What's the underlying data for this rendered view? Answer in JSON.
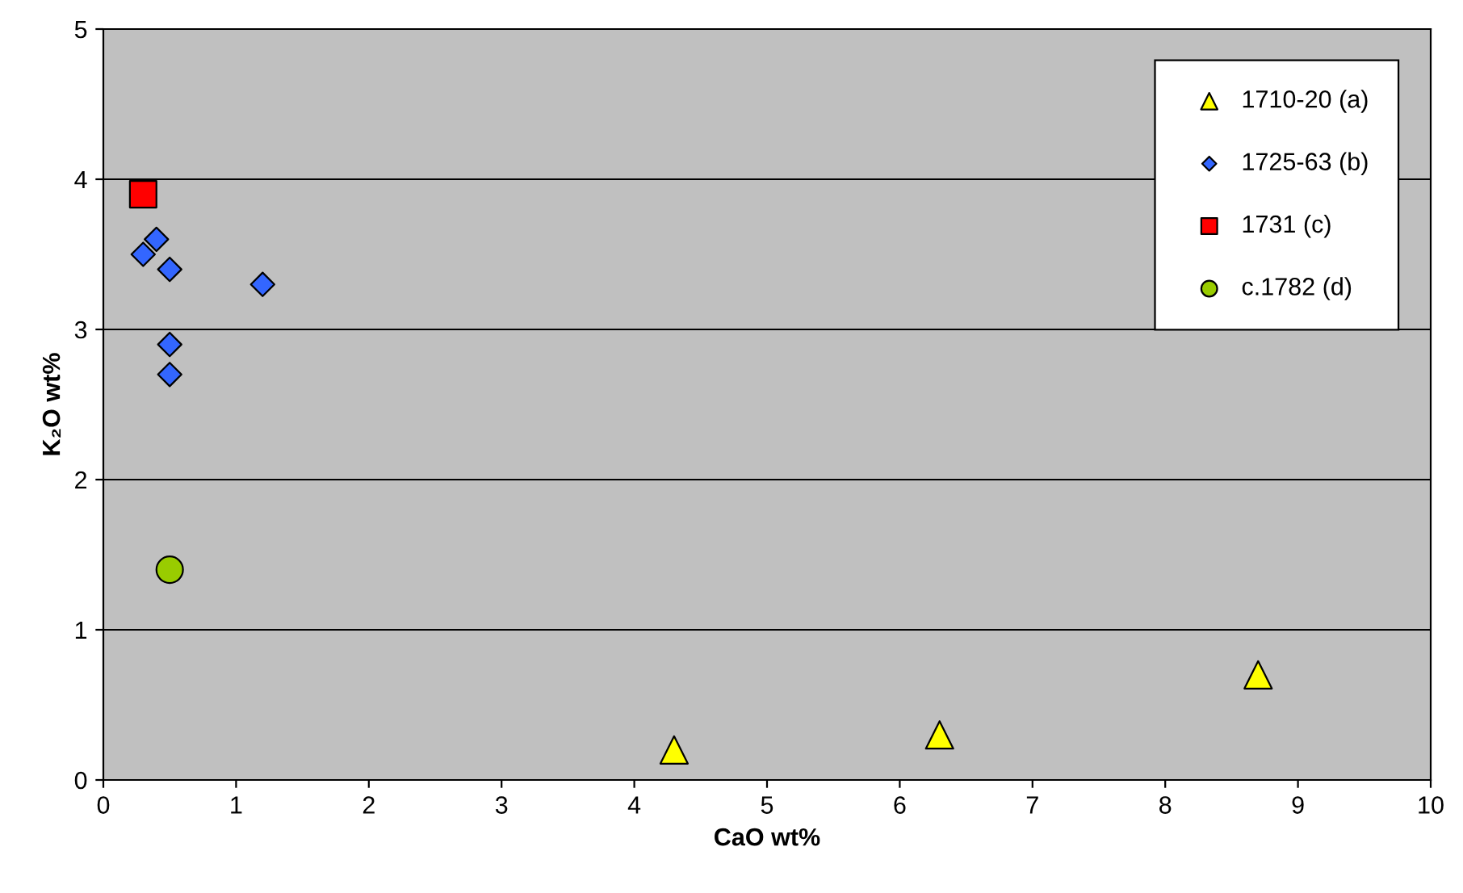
{
  "chart_data": {
    "type": "scatter",
    "xlabel": "CaO wt%",
    "ylabel": "K₂O wt%",
    "xlim": [
      0,
      10
    ],
    "ylim": [
      0,
      5
    ],
    "xticks": [
      0,
      1,
      2,
      3,
      4,
      5,
      6,
      7,
      8,
      9,
      10
    ],
    "yticks": [
      0,
      1,
      2,
      3,
      4,
      5
    ],
    "grid": "y",
    "legend": "top right",
    "series": [
      {
        "name": "1710-20 (a)",
        "color": "#ffff00",
        "marker": "triangle",
        "x": [
          4.3,
          6.3,
          8.7
        ],
        "values": [
          0.2,
          0.3,
          0.7
        ]
      },
      {
        "name": "1725-63 (b)",
        "color": "#3366ff",
        "marker": "diamond",
        "x": [
          0.3,
          0.4,
          0.5,
          1.2,
          0.5,
          0.5
        ],
        "values": [
          3.5,
          3.6,
          3.4,
          3.3,
          2.9,
          2.7
        ]
      },
      {
        "name": "1731 (c)",
        "color": "#ff0000",
        "marker": "square",
        "x": [
          0.3
        ],
        "values": [
          3.9
        ]
      },
      {
        "name": "c.1782 (d)",
        "color": "#99cc00",
        "marker": "circle",
        "x": [
          0.5
        ],
        "values": [
          1.4
        ]
      }
    ]
  }
}
